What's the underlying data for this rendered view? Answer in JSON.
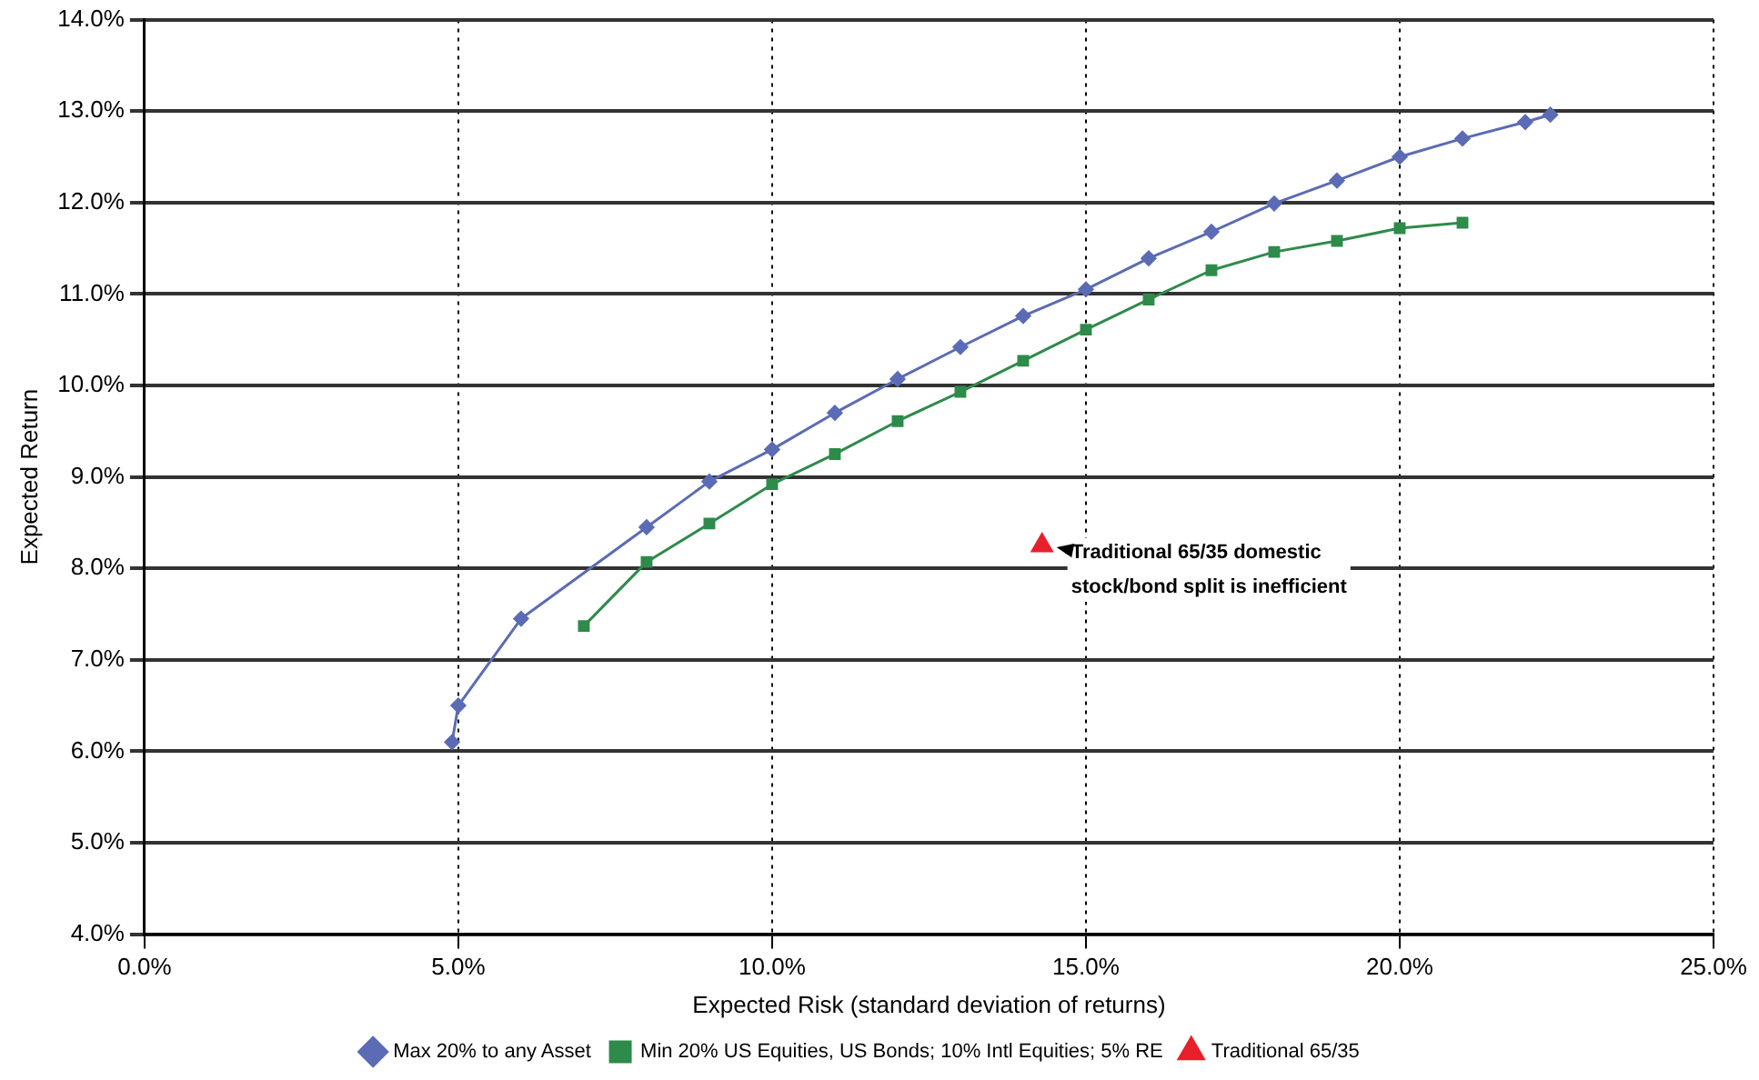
{
  "chart_data": {
    "type": "line",
    "xlabel": "Expected Risk (standard deviation of returns)",
    "ylabel": "Expected Return",
    "xlim": [
      0,
      25
    ],
    "xticks": [
      {
        "value": 0,
        "label": "0.0%"
      },
      {
        "value": 5,
        "label": "5.0%"
      },
      {
        "value": 10,
        "label": "10.0%"
      },
      {
        "value": 15,
        "label": "15.0%"
      },
      {
        "value": 20,
        "label": "20.0%"
      },
      {
        "value": 25,
        "label": "25.0%"
      }
    ],
    "ylim": [
      4,
      14
    ],
    "yticks": [
      {
        "value": 4,
        "label": "4.0%"
      },
      {
        "value": 5,
        "label": "5.0%"
      },
      {
        "value": 6,
        "label": "6.0%"
      },
      {
        "value": 7,
        "label": "7.0%"
      },
      {
        "value": 8,
        "label": "8.0%"
      },
      {
        "value": 9,
        "label": "9.0%"
      },
      {
        "value": 10,
        "label": "10.0%"
      },
      {
        "value": 11,
        "label": "11.0%"
      },
      {
        "value": 12,
        "label": "12.0%"
      },
      {
        "value": 13,
        "label": "13.0%"
      },
      {
        "value": 14,
        "label": "14.0%"
      }
    ],
    "grid": true,
    "legend": "bottom",
    "series": [
      {
        "name": "Max 20% to any Asset",
        "color": "#5b6bb5",
        "marker": "diamond",
        "x": [
          4.9,
          5.0,
          6.0,
          8.0,
          9.0,
          10.0,
          11.0,
          12.0,
          13.0,
          14.0,
          15.0,
          16.0,
          17.0,
          18.0,
          19.0,
          20.0,
          21.0,
          22.0,
          22.4
        ],
        "values": [
          6.1,
          6.5,
          7.45,
          8.45,
          8.95,
          9.3,
          9.7,
          10.07,
          10.42,
          10.76,
          11.05,
          11.39,
          11.68,
          11.99,
          12.24,
          12.5,
          12.7,
          12.88,
          12.96
        ]
      },
      {
        "name": "Min 20% US Equities, US Bonds; 10% Intl Equities; 5% RE",
        "color": "#2e8b4a",
        "marker": "square",
        "x": [
          7.0,
          8.0,
          9.0,
          10.0,
          11.0,
          12.0,
          13.0,
          14.0,
          15.0,
          16.0,
          17.0,
          18.0,
          19.0,
          20.0,
          21.0
        ],
        "values": [
          7.37,
          8.07,
          8.49,
          8.92,
          9.25,
          9.61,
          9.93,
          10.27,
          10.61,
          10.94,
          11.26,
          11.46,
          11.58,
          11.72,
          11.78
        ]
      },
      {
        "name": "Traditional 65/35",
        "type": "scatter",
        "color": "#e8202a",
        "marker": "triangle",
        "x": [
          14.3
        ],
        "values": [
          8.25
        ]
      }
    ],
    "annotations": [
      {
        "text": "Traditional 65/35 domestic stock/bond split is inefficient",
        "x": 14.3,
        "y": 8.25
      }
    ]
  }
}
